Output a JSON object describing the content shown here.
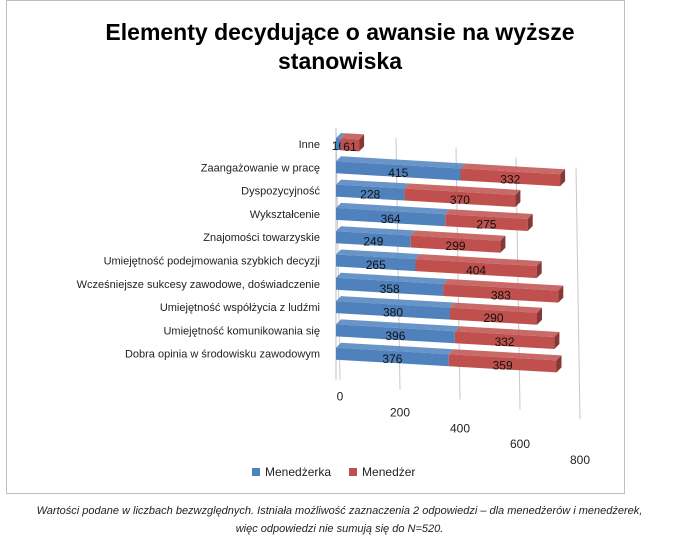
{
  "chart_data": {
    "type": "bar",
    "orientation": "horizontal",
    "stacked": true,
    "title": "Elementy decydujące o awansie na wyższe stanowiska",
    "categories": [
      "Inne",
      "Zaangażowanie w pracę",
      "Dyspozycyjność",
      "Wykształcenie",
      "Znajomości towarzyskie",
      "Umiejętność podejmowania szybkich decyzji",
      "Wcześniejsze sukcesy zawodowe, doświadczenie",
      "Umiejętność współżycia z ludźmi",
      "Umiejętność komunikowania się",
      "Dobra opinia w środowisku zawodowym"
    ],
    "series": [
      {
        "name": "Menedżerka",
        "color": "#4f81bd",
        "values": [
          16,
          415,
          228,
          364,
          249,
          265,
          358,
          380,
          396,
          376
        ]
      },
      {
        "name": "Menedżer",
        "color": "#c0504d",
        "values": [
          61,
          332,
          370,
          275,
          299,
          404,
          383,
          290,
          332,
          359
        ]
      }
    ],
    "xlim": [
      0,
      800
    ],
    "xticks": [
      "0",
      "200",
      "400",
      "600",
      "800"
    ],
    "legend_position": "bottom",
    "grid": true
  },
  "caption_line1": "Wartości podane w liczbach bezwzględnych. Istniała możliwość zaznaczenia 2 odpowiedzi – dla menedżerów i menedżerek,",
  "caption_line2": "więc odpowiedzi nie sumują się do N=520."
}
